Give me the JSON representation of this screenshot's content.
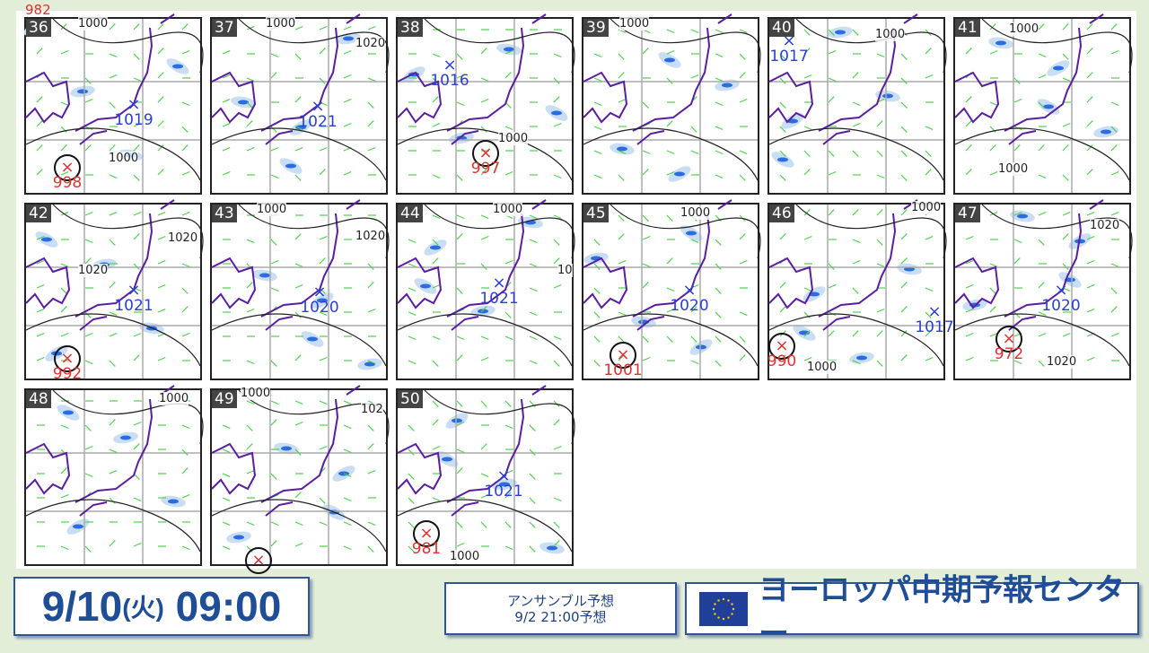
{
  "cut_label": "982",
  "panels": [
    {
      "num": "36",
      "highs": [
        "1019"
      ],
      "lows": [
        "998"
      ],
      "contours": [
        "1000",
        "1000"
      ]
    },
    {
      "num": "37",
      "highs": [
        "1021"
      ],
      "lows": [],
      "contours": [
        "1000",
        "1020"
      ]
    },
    {
      "num": "38",
      "highs": [
        "1016"
      ],
      "lows": [
        "997"
      ],
      "contours": [
        "1000"
      ]
    },
    {
      "num": "39",
      "highs": [],
      "lows": [],
      "contours": [
        "1000"
      ]
    },
    {
      "num": "40",
      "highs": [
        "1017"
      ],
      "lows": [],
      "contours": [
        "1000"
      ]
    },
    {
      "num": "41",
      "highs": [],
      "lows": [],
      "contours": [
        "1000",
        "1000"
      ]
    },
    {
      "num": "42",
      "highs": [
        "1021"
      ],
      "lows": [
        "992"
      ],
      "contours": [
        "1020",
        "1020"
      ]
    },
    {
      "num": "43",
      "highs": [
        "1020"
      ],
      "lows": [],
      "contours": [
        "1000",
        "1020"
      ]
    },
    {
      "num": "44",
      "highs": [
        "1021"
      ],
      "lows": [],
      "contours": [
        "1000",
        "10"
      ]
    },
    {
      "num": "45",
      "highs": [
        "1020"
      ],
      "lows": [
        "1001"
      ],
      "contours": [
        "1000"
      ]
    },
    {
      "num": "46",
      "highs": [
        "1017"
      ],
      "lows": [
        "990"
      ],
      "contours": [
        "1000",
        "1000"
      ]
    },
    {
      "num": "47",
      "highs": [
        "1020"
      ],
      "lows": [
        "972"
      ],
      "contours": [
        "1020",
        "1020"
      ]
    },
    {
      "num": "48",
      "highs": [],
      "lows": [],
      "contours": [
        "1000"
      ]
    },
    {
      "num": "49",
      "highs": [],
      "lows": [
        ""
      ],
      "contours": [
        "1000",
        "102"
      ]
    },
    {
      "num": "50",
      "highs": [
        "1021"
      ],
      "lows": [
        "981"
      ],
      "contours": [
        "1000"
      ]
    }
  ],
  "markers": {
    "high_symbol": "×",
    "low_symbol": "×",
    "high_color": "#2a3fd4",
    "low_color": "#e03030"
  },
  "footer": {
    "date": "9/10",
    "weekday": "(火)",
    "time": "09:00",
    "ensemble_title": "アンサンブル予想",
    "ensemble_init": "9/2 21:00予想",
    "center_name": "ヨーロッパ中期予報センター"
  },
  "colors": {
    "accent": "#1f4e96",
    "background": "#e2eed8"
  }
}
